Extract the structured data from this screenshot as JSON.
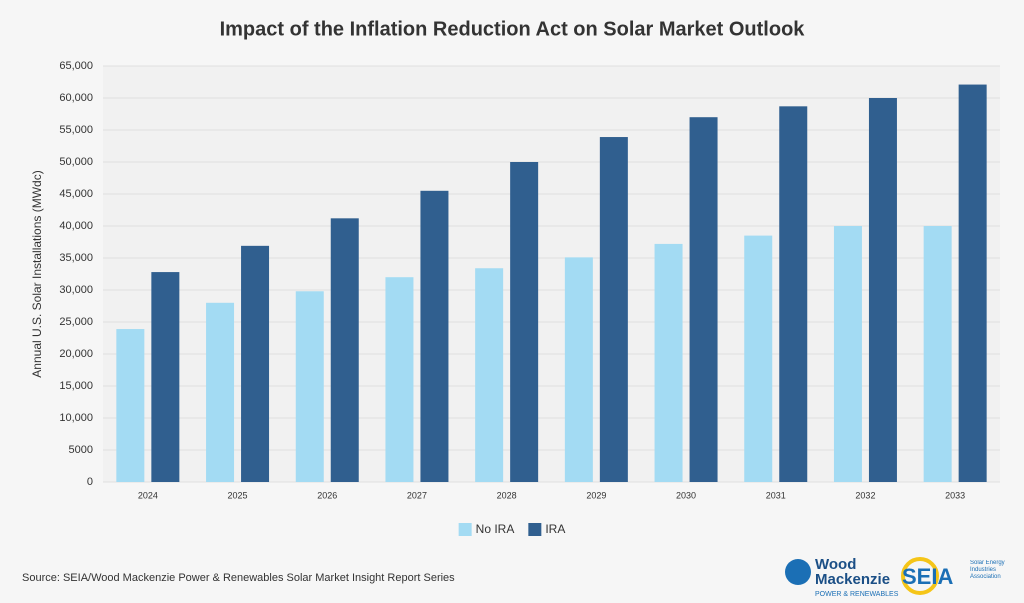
{
  "chart_data": {
    "type": "bar",
    "title": "Impact of the Inflation Reduction Act on Solar Market Outlook",
    "y_label": "Annual U.S. Solar Installations (MWdc)",
    "categories": [
      "2024",
      "2025",
      "2026",
      "2027",
      "2028",
      "2029",
      "2030",
      "2031",
      "2032",
      "2033"
    ],
    "series": [
      {
        "name": "No IRA",
        "color": "#a3dbf3",
        "values": [
          23900,
          28000,
          29800,
          32000,
          33400,
          35100,
          37200,
          38500,
          40000,
          40000
        ]
      },
      {
        "name": "IRA",
        "color": "#305f8f",
        "values": [
          32800,
          36900,
          41200,
          45500,
          50000,
          53900,
          57000,
          58700,
          60000,
          62100
        ]
      }
    ],
    "ylim": [
      0,
      65000
    ],
    "yticks": [
      0,
      5000,
      {
        "value": 10000,
        "label": "10,000"
      },
      {
        "value": 15000,
        "label": "15,000"
      },
      {
        "value": 20000,
        "label": "20,000"
      },
      {
        "value": 25000,
        "label": "25,000"
      },
      {
        "value": 30000,
        "label": "30,000"
      },
      {
        "value": 35000,
        "label": "35,000"
      },
      {
        "value": 40000,
        "label": "40,000"
      },
      {
        "value": 45000,
        "label": "45,000"
      },
      {
        "value": 50000,
        "label": "50,000"
      },
      {
        "value": 55000,
        "label": "55,000"
      },
      {
        "value": 60000,
        "label": "60,000"
      },
      {
        "value": 65000,
        "label": "65,000"
      }
    ],
    "grid": true,
    "legend": "bottom",
    "source": "Source: SEIA/Wood Mackenzie Power & Renewables Solar Market Insight Report Series",
    "logos": [
      "Wood",
      "Mackenzie",
      "POWER & RENEWABLES",
      "SEIA",
      "Solar Energy Industries Association"
    ]
  }
}
